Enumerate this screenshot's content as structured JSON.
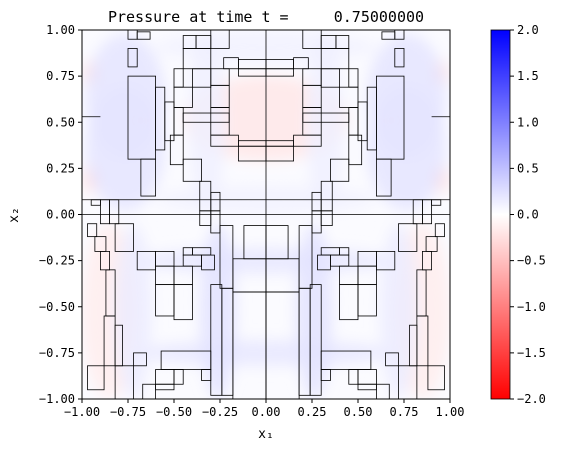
{
  "chart_data": {
    "type": "heatmap",
    "title": "Pressure at time t =     0.75000000",
    "xlabel": "x₁",
    "ylabel": "x₂",
    "xlim": [
      -1.0,
      1.0
    ],
    "ylim": [
      -1.0,
      1.0
    ],
    "x_ticks": [
      -1.0,
      -0.75,
      -0.5,
      -0.25,
      0.0,
      0.25,
      0.5,
      0.75,
      1.0
    ],
    "y_ticks": [
      -1.0,
      -0.75,
      -0.5,
      -0.25,
      0.0,
      0.25,
      0.5,
      0.75,
      1.0
    ],
    "x_tick_labels": [
      "−1.00",
      "−0.75",
      "−0.50",
      "−0.25",
      "0.00",
      "0.25",
      "0.50",
      "0.75",
      "1.00"
    ],
    "y_tick_labels": [
      "−1.00",
      "−0.75",
      "−0.50",
      "−0.25",
      "0.00",
      "0.25",
      "0.50",
      "0.75",
      "1.00"
    ],
    "colorbar": {
      "min": -2.0,
      "max": 2.0,
      "ticks": [
        -2.0,
        -1.5,
        -1.0,
        -0.5,
        0.0,
        0.5,
        1.0,
        1.5,
        2.0
      ],
      "tick_labels": [
        "−2.0",
        "−1.5",
        "−1.0",
        "−0.5",
        "0.0",
        "0.5",
        "1.0",
        "1.5",
        "2.0"
      ],
      "low_color": "#ff0000",
      "mid_color": "#ffffff",
      "high_color": "#0000ff"
    },
    "pressure_regions": [
      {
        "x": [
          -0.45,
          0.45
        ],
        "y": [
          0.29,
          0.75
        ],
        "value": -0.18,
        "shape": "ellipse"
      },
      {
        "x": [
          -1.0,
          -0.7
        ],
        "y": [
          -1.0,
          -0.05
        ],
        "value": -0.14,
        "shape": "ellipse"
      },
      {
        "x": [
          0.7,
          1.0
        ],
        "y": [
          -1.0,
          -0.05
        ],
        "value": -0.14,
        "shape": "ellipse"
      },
      {
        "x": [
          -0.75,
          -0.6
        ],
        "y": [
          0.46,
          0.56
        ],
        "value": -0.3,
        "shape": "ellipse"
      },
      {
        "x": [
          0.6,
          0.75
        ],
        "y": [
          0.46,
          0.56
        ],
        "value": -0.3,
        "shape": "ellipse"
      },
      {
        "x": [
          -1.0,
          -0.9
        ],
        "y": [
          0.7,
          0.83
        ],
        "value": -0.25,
        "shape": "ellipse"
      },
      {
        "x": [
          -1.0,
          -0.9
        ],
        "y": [
          0.12,
          0.27
        ],
        "value": -0.25,
        "shape": "ellipse"
      },
      {
        "x": [
          0.9,
          1.0
        ],
        "y": [
          0.7,
          0.83
        ],
        "value": -0.25,
        "shape": "ellipse"
      },
      {
        "x": [
          0.9,
          1.0
        ],
        "y": [
          0.12,
          0.27
        ],
        "value": -0.25,
        "shape": "ellipse"
      },
      {
        "x": [
          -0.7,
          0.7
        ],
        "y": [
          -0.32,
          -0.18
        ],
        "value": 0.18,
        "shape": "ellipse"
      },
      {
        "x": [
          -0.7,
          0.7
        ],
        "y": [
          -0.82,
          -0.68
        ],
        "value": 0.18,
        "shape": "ellipse"
      },
      {
        "x": [
          -0.36,
          -0.16
        ],
        "y": [
          -1.0,
          -0.05
        ],
        "value": 0.22,
        "shape": "ellipse"
      },
      {
        "x": [
          0.16,
          0.36
        ],
        "y": [
          -1.0,
          -0.05
        ],
        "value": 0.22,
        "shape": "ellipse"
      },
      {
        "x": [
          -0.82,
          -0.62
        ],
        "y": [
          -1.0,
          -0.05
        ],
        "value": 0.15,
        "shape": "ellipse"
      },
      {
        "x": [
          0.62,
          0.82
        ],
        "y": [
          -1.0,
          -0.05
        ],
        "value": 0.15,
        "shape": "ellipse"
      },
      {
        "x": [
          -0.98,
          -0.55
        ],
        "y": [
          0.3,
          0.98
        ],
        "value": 0.2,
        "shape": "ellipse"
      },
      {
        "x": [
          0.55,
          0.98
        ],
        "y": [
          0.3,
          0.98
        ],
        "value": 0.2,
        "shape": "ellipse"
      },
      {
        "x": [
          -0.98,
          -0.55
        ],
        "y": [
          0.02,
          0.7
        ],
        "value": 0.2,
        "shape": "ellipse"
      },
      {
        "x": [
          0.55,
          0.98
        ],
        "y": [
          0.02,
          0.7
        ],
        "value": 0.2,
        "shape": "ellipse"
      },
      {
        "x": [
          -0.6,
          0.6
        ],
        "y": [
          0.82,
          1.0
        ],
        "value": 0.1,
        "shape": "ellipse"
      },
      {
        "x": [
          -0.6,
          0.6
        ],
        "y": [
          0.0,
          0.16
        ],
        "value": 0.1,
        "shape": "ellipse"
      },
      {
        "x": [
          -0.42,
          -0.22
        ],
        "y": [
          0.0,
          1.0
        ],
        "value": 0.12,
        "shape": "ellipse"
      },
      {
        "x": [
          0.22,
          0.42
        ],
        "y": [
          0.0,
          1.0
        ],
        "value": 0.12,
        "shape": "ellipse"
      }
    ],
    "mesh_cells": [
      [
        -0.75,
        0.3,
        -0.6,
        0.75
      ],
      [
        -0.6,
        0.35,
        -0.55,
        0.69
      ],
      [
        -0.55,
        0.4,
        -0.5,
        0.61
      ],
      [
        -0.5,
        0.43,
        -0.45,
        0.58
      ],
      [
        -0.5,
        0.58,
        -0.4,
        0.69
      ],
      [
        -0.5,
        0.69,
        -0.45,
        0.79
      ],
      [
        -0.4,
        0.69,
        -0.3,
        0.79
      ],
      [
        -0.45,
        0.79,
        -0.3,
        0.9
      ],
      [
        -0.45,
        0.9,
        -0.38,
        0.97
      ],
      [
        -0.45,
        0.5,
        -0.2,
        0.55
      ],
      [
        -0.3,
        0.7,
        -0.2,
        0.79
      ],
      [
        -0.23,
        0.79,
        -0.15,
        0.85
      ],
      [
        -0.15,
        0.79,
        0.0,
        0.84
      ],
      [
        -0.15,
        0.75,
        0.0,
        0.79
      ],
      [
        -0.3,
        0.58,
        -0.2,
        0.7
      ],
      [
        -0.3,
        0.43,
        -0.2,
        0.58
      ],
      [
        -0.3,
        0.37,
        -0.15,
        0.43
      ],
      [
        -0.15,
        0.37,
        0.0,
        0.4
      ],
      [
        -0.15,
        0.29,
        0.0,
        0.37
      ],
      [
        -0.52,
        0.27,
        -0.45,
        0.43
      ],
      [
        -0.68,
        0.1,
        -0.6,
        0.3
      ],
      [
        -0.45,
        0.18,
        -0.35,
        0.3
      ],
      [
        -0.75,
        0.8,
        -0.7,
        0.9
      ],
      [
        -0.7,
        0.95,
        -0.63,
        0.99
      ],
      [
        -0.75,
        0.95,
        -0.7,
        1.0
      ],
      [
        -0.3,
        0.9,
        -0.2,
        1.0
      ],
      [
        -0.38,
        0.9,
        -0.3,
        0.97
      ],
      [
        -0.36,
        0.02,
        -0.3,
        0.18
      ],
      [
        -0.3,
        0.02,
        -0.25,
        0.12
      ],
      [
        -0.95,
        0.05,
        -0.9,
        0.08
      ],
      [
        -0.9,
        -0.05,
        -0.85,
        0.08
      ],
      [
        -0.85,
        -0.05,
        -0.8,
        0.08
      ],
      [
        -0.97,
        -0.12,
        -0.92,
        -0.05
      ],
      [
        -0.93,
        -0.2,
        -0.87,
        -0.12
      ],
      [
        -0.9,
        -0.3,
        -0.85,
        -0.2
      ],
      [
        -0.87,
        -0.55,
        -0.82,
        -0.3
      ],
      [
        -0.88,
        -0.82,
        -0.82,
        -0.55
      ],
      [
        -0.97,
        -0.95,
        -0.88,
        -0.82
      ],
      [
        -0.82,
        -0.82,
        -0.78,
        -0.6
      ],
      [
        -0.82,
        -1.0,
        -0.72,
        -0.82
      ],
      [
        -0.82,
        -0.2,
        -0.72,
        -0.05
      ],
      [
        -0.72,
        -0.82,
        -0.65,
        -0.75
      ],
      [
        -0.7,
        -0.3,
        -0.6,
        -0.2
      ],
      [
        -0.6,
        -0.28,
        -0.5,
        -0.2
      ],
      [
        -0.6,
        -0.38,
        -0.5,
        -0.28
      ],
      [
        -0.5,
        -0.38,
        -0.4,
        -0.28
      ],
      [
        -0.6,
        -0.55,
        -0.5,
        -0.38
      ],
      [
        -0.5,
        -0.57,
        -0.4,
        -0.38
      ],
      [
        -0.45,
        -0.28,
        -0.35,
        -0.22
      ],
      [
        -0.35,
        -0.3,
        -0.28,
        -0.22
      ],
      [
        -0.45,
        -0.22,
        -0.4,
        -0.18
      ],
      [
        -0.4,
        -0.22,
        -0.3,
        -0.18
      ],
      [
        -0.57,
        -0.84,
        -0.3,
        -0.74
      ],
      [
        -0.6,
        -0.92,
        -0.5,
        -0.84
      ],
      [
        -0.5,
        -0.92,
        -0.45,
        -0.84
      ],
      [
        -0.67,
        -1.0,
        -0.6,
        -0.92
      ],
      [
        -0.6,
        -0.95,
        -0.5,
        -0.92
      ],
      [
        -0.35,
        -0.9,
        -0.3,
        -0.84
      ],
      [
        -0.3,
        -0.98,
        -0.24,
        -0.38
      ],
      [
        -0.24,
        -0.98,
        -0.18,
        -0.4
      ],
      [
        -0.36,
        -0.06,
        -0.3,
        0.02
      ],
      [
        -0.3,
        -0.1,
        -0.25,
        0.02
      ],
      [
        -0.25,
        -0.4,
        -0.18,
        -0.06
      ],
      [
        -0.18,
        -1.0,
        0.0,
        -0.42
      ],
      [
        -0.18,
        -0.42,
        0.0,
        -0.24
      ],
      [
        -0.12,
        -0.24,
        0.0,
        -0.06
      ]
    ],
    "mesh_lines": [
      [
        -1.0,
        0.0,
        1.0,
        0.0
      ],
      [
        0.0,
        -1.0,
        0.0,
        1.0
      ],
      [
        -1.0,
        0.08,
        1.0,
        0.08
      ],
      [
        -1.0,
        0.53,
        -0.9,
        0.53
      ],
      [
        0.9,
        0.53,
        1.0,
        0.53
      ]
    ]
  }
}
